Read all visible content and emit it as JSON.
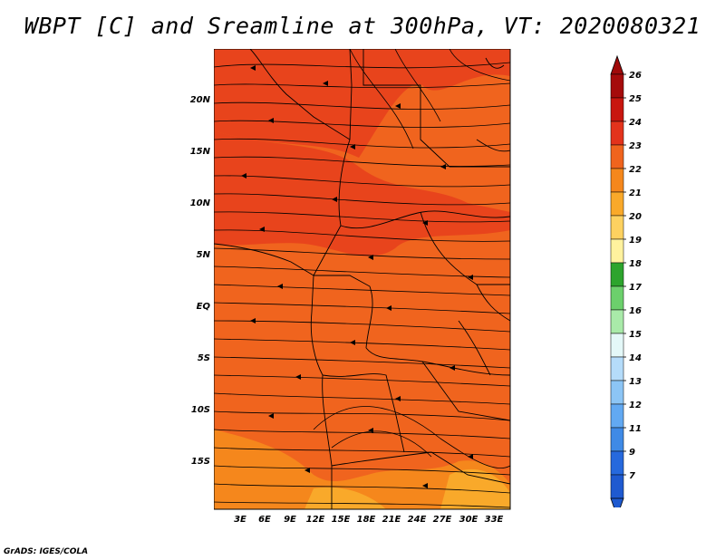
{
  "title": "WBPT [C] and Sreamline at 300hPa, VT: 2020080321",
  "credit": "GrADS: IGES/COLA",
  "map": {
    "lat_labels": [
      "20N",
      "15N",
      "10N",
      "5N",
      "EQ",
      "5S",
      "10S",
      "15S"
    ],
    "lon_labels": [
      "3E",
      "6E",
      "9E",
      "12E",
      "15E",
      "18E",
      "21E",
      "24E",
      "27E",
      "30E",
      "33E"
    ],
    "fill_colors": {
      "dominant": "#f0641e",
      "warm": "#e8441c",
      "cool": "#f5871c",
      "coolest": "#f9a92a"
    }
  },
  "colorbar": {
    "labels": [
      "26",
      "25",
      "24",
      "23",
      "22",
      "21",
      "20",
      "19",
      "18",
      "17",
      "16",
      "15",
      "14",
      "13",
      "12",
      "11",
      "9",
      "7"
    ],
    "colors": [
      "#a50b0b",
      "#c8160f",
      "#e3331c",
      "#f0641e",
      "#f5871c",
      "#f9a92a",
      "#fdd160",
      "#fff29e",
      "#2da42d",
      "#6cd06c",
      "#a9eaa9",
      "#e4f8f8",
      "#b5dcfa",
      "#8cc5f5",
      "#62a9f2",
      "#3f8ae6",
      "#2669dd",
      "#1f5ad0"
    ],
    "top_arrow_color": "#a00a0a",
    "bottom_arrow_color": "#1e5ad0"
  }
}
